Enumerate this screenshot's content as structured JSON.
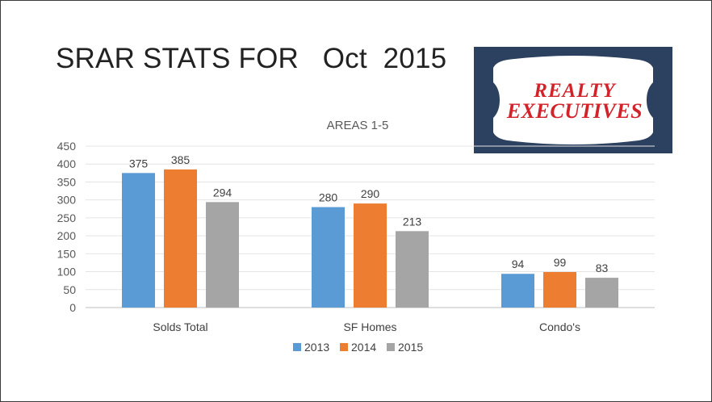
{
  "slide": {
    "title": "SRAR STATS FOR   Oct  2015"
  },
  "logo": {
    "line1": "REALTY",
    "line2": "EXECUTIVES",
    "bg_color": "#2c4060",
    "text_color": "#d2232a"
  },
  "chart_data": {
    "type": "bar",
    "title": "AREAS 1-5",
    "categories": [
      "Solds Total",
      "SF Homes",
      "Condo's"
    ],
    "series": [
      {
        "name": "2013",
        "color": "#5b9bd5",
        "values": [
          375,
          280,
          94
        ]
      },
      {
        "name": "2014",
        "color": "#ed7d31",
        "values": [
          385,
          290,
          99
        ]
      },
      {
        "name": "2015",
        "color": "#a5a5a5",
        "values": [
          294,
          213,
          83
        ]
      }
    ],
    "ylim": [
      0,
      450
    ],
    "yticks": [
      0,
      50,
      100,
      150,
      200,
      250,
      300,
      350,
      400,
      450
    ],
    "grid": true,
    "legend": "bottom",
    "data_labels": true
  }
}
